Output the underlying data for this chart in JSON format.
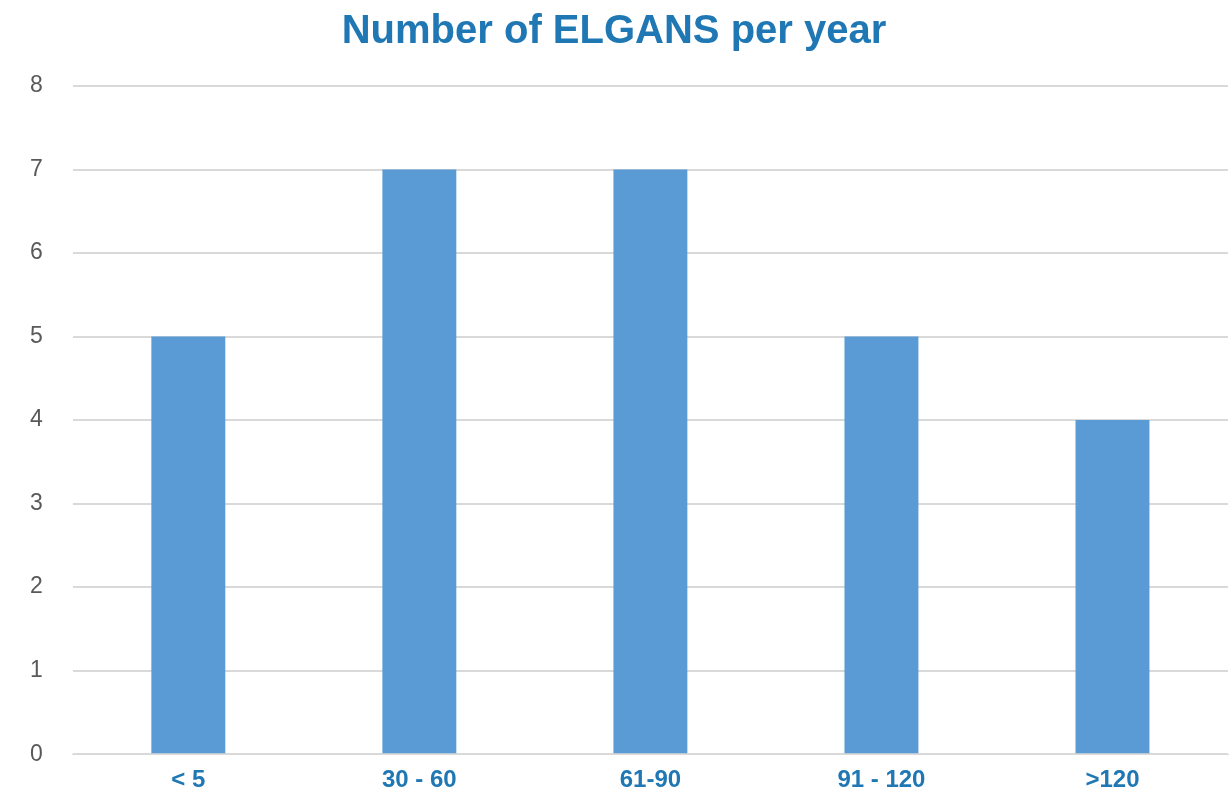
{
  "chart_data": {
    "type": "bar",
    "title": "Number of ELGANS per year",
    "categories": [
      "< 5",
      "30 - 60",
      "61-90",
      "91 - 120",
      ">120"
    ],
    "values": [
      5,
      7,
      7,
      5,
      4
    ],
    "color": "#5b9bd5",
    "ylim": [
      0,
      8
    ],
    "yticks": [
      0,
      1,
      2,
      3,
      4,
      5,
      6,
      7,
      8
    ],
    "grid": "y"
  }
}
